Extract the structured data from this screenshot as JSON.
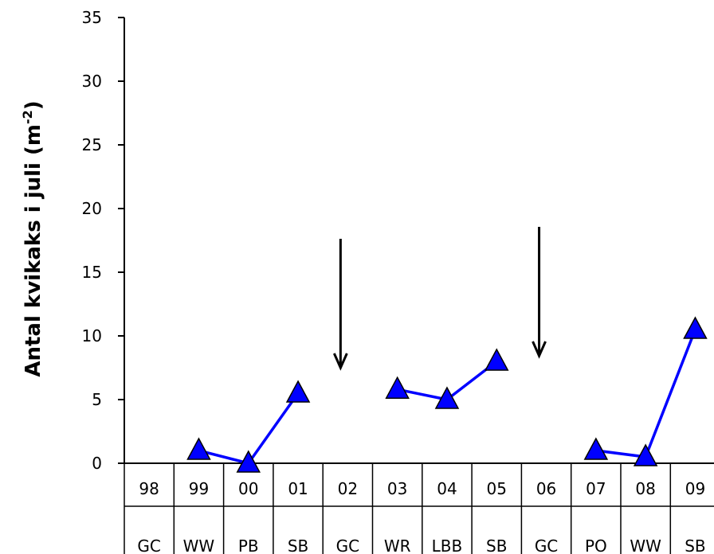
{
  "chart_data": {
    "type": "line",
    "ylabel": "Antal kvikaks i juli  (m",
    "ylabel_sup": "-2",
    "ylabel_close": ")",
    "ylim": [
      0,
      35
    ],
    "yticks": [
      "0",
      "5",
      "10",
      "15",
      "20",
      "25",
      "30",
      "35"
    ],
    "categories": [
      "98",
      "99",
      "00",
      "01",
      "02",
      "03",
      "04",
      "05",
      "06",
      "07",
      "08",
      "09"
    ],
    "crops": [
      "GC",
      "WW",
      "PB",
      "SB",
      "GC",
      "WR",
      "LBB",
      "SB",
      "GC",
      "PO",
      "WW",
      "SB"
    ],
    "series": [
      {
        "values": [
          null,
          1,
          0,
          5.5,
          null,
          5.8,
          5,
          8,
          null,
          1,
          0.5,
          10.5
        ],
        "color": "#0000ff",
        "marker": "triangle"
      }
    ],
    "arrows_at": [
      "02",
      "06"
    ],
    "grid": false
  }
}
